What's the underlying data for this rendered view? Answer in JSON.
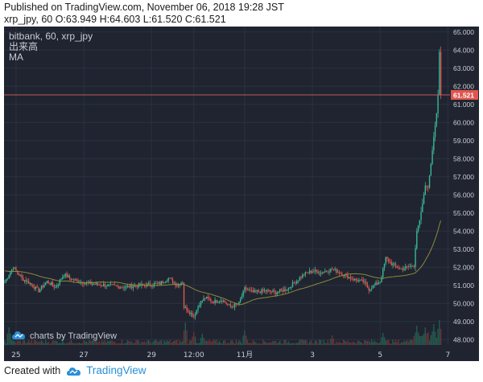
{
  "header": {
    "published_line": "Published on TradingView.com, November 06, 2018 19:28 JST",
    "ohlc_line": "xrp_jpy, 60 O:63.949 H:64.603 L:61.520 C:61.521"
  },
  "footer": {
    "created_with": "Created with",
    "brand": "TradingView"
  },
  "colors": {
    "background": "#1f2430",
    "grid": "#2b3140",
    "up": "#3ab795",
    "down": "#e0564e",
    "ma": "#8c8a3c",
    "price_line": "#c2575a",
    "axis_text": "#c9ccd4"
  },
  "chart_data": {
    "type": "candlestick",
    "legend": {
      "symbol": "bitbank, 60, xrp_jpy",
      "volume_label": "出来高",
      "ma_label": "MA"
    },
    "watermark": "charts by TradingView",
    "last_price_label": "61.521",
    "last_price": 61.521,
    "ylim": [
      47.7,
      65.3
    ],
    "y_ticks": [
      "65.000",
      "64.000",
      "63.000",
      "62.000",
      "61.000",
      "60.000",
      "59.000",
      "58.000",
      "57.000",
      "56.000",
      "55.000",
      "54.000",
      "53.000",
      "52.000",
      "51.000",
      "50.000",
      "49.000",
      "48.000"
    ],
    "x_ticks": [
      {
        "label": "25",
        "bar": 8
      },
      {
        "label": "27",
        "bar": 56
      },
      {
        "label": "29",
        "bar": 104
      },
      {
        "label": "12:00",
        "bar": 134
      },
      {
        "label": "11月",
        "bar": 170
      },
      {
        "label": "3",
        "bar": 218
      },
      {
        "label": "5",
        "bar": 266
      },
      {
        "label": "7",
        "bar": 314
      }
    ],
    "bar_count": 316,
    "price_path": [
      {
        "bar": 0,
        "price": 51.2
      },
      {
        "bar": 6,
        "price": 52.0
      },
      {
        "bar": 12,
        "price": 51.4
      },
      {
        "bar": 18,
        "price": 51.1
      },
      {
        "bar": 24,
        "price": 50.7
      },
      {
        "bar": 30,
        "price": 51.2
      },
      {
        "bar": 36,
        "price": 50.9
      },
      {
        "bar": 42,
        "price": 51.6
      },
      {
        "bar": 48,
        "price": 51.3
      },
      {
        "bar": 60,
        "price": 51.1
      },
      {
        "bar": 72,
        "price": 51.0
      },
      {
        "bar": 84,
        "price": 50.9
      },
      {
        "bar": 96,
        "price": 51.0
      },
      {
        "bar": 110,
        "price": 51.1
      },
      {
        "bar": 116,
        "price": 51.4
      },
      {
        "bar": 122,
        "price": 51.0
      },
      {
        "bar": 126,
        "price": 51.2
      },
      {
        "bar": 127,
        "price": 49.8
      },
      {
        "bar": 130,
        "price": 49.6
      },
      {
        "bar": 134,
        "price": 49.3
      },
      {
        "bar": 138,
        "price": 50.0
      },
      {
        "bar": 142,
        "price": 50.3
      },
      {
        "bar": 148,
        "price": 50.1
      },
      {
        "bar": 154,
        "price": 50.2
      },
      {
        "bar": 160,
        "price": 49.8
      },
      {
        "bar": 166,
        "price": 50.0
      },
      {
        "bar": 170,
        "price": 50.8
      },
      {
        "bar": 176,
        "price": 50.6
      },
      {
        "bar": 184,
        "price": 50.7
      },
      {
        "bar": 192,
        "price": 50.6
      },
      {
        "bar": 200,
        "price": 50.8
      },
      {
        "bar": 206,
        "price": 51.2
      },
      {
        "bar": 212,
        "price": 51.6
      },
      {
        "bar": 218,
        "price": 51.8
      },
      {
        "bar": 224,
        "price": 51.7
      },
      {
        "bar": 232,
        "price": 51.9
      },
      {
        "bar": 240,
        "price": 51.6
      },
      {
        "bar": 248,
        "price": 51.3
      },
      {
        "bar": 254,
        "price": 51.2
      },
      {
        "bar": 258,
        "price": 50.8
      },
      {
        "bar": 262,
        "price": 51.0
      },
      {
        "bar": 266,
        "price": 51.2
      },
      {
        "bar": 270,
        "price": 52.5
      },
      {
        "bar": 274,
        "price": 52.2
      },
      {
        "bar": 280,
        "price": 51.9
      },
      {
        "bar": 286,
        "price": 52.0
      },
      {
        "bar": 290,
        "price": 52.1
      },
      {
        "bar": 292,
        "price": 54.0
      },
      {
        "bar": 294,
        "price": 54.6
      },
      {
        "bar": 296,
        "price": 55.5
      },
      {
        "bar": 298,
        "price": 56.5
      },
      {
        "bar": 300,
        "price": 56.4
      },
      {
        "bar": 302,
        "price": 57.7
      },
      {
        "bar": 304,
        "price": 59.2
      },
      {
        "bar": 306,
        "price": 60.5
      },
      {
        "bar": 307,
        "price": 61.5
      },
      {
        "bar": 308,
        "price": 63.9
      },
      {
        "bar": 309,
        "price": 61.521
      }
    ],
    "volume_spikes": [
      {
        "bar": 3,
        "volume": 4.4
      },
      {
        "bar": 128,
        "volume": 5.6
      },
      {
        "bar": 134,
        "volume": 3.2
      },
      {
        "bar": 140,
        "volume": 2.8
      },
      {
        "bar": 170,
        "volume": 3.6
      },
      {
        "bar": 232,
        "volume": 2.4
      },
      {
        "bar": 268,
        "volume": 3.0
      },
      {
        "bar": 292,
        "volume": 4.8
      },
      {
        "bar": 298,
        "volume": 4.4
      },
      {
        "bar": 304,
        "volume": 5.2
      },
      {
        "bar": 308,
        "volume": 6.2
      }
    ],
    "volume_ylim": [
      0,
      16
    ],
    "ma_start": 51.8,
    "ma_window": 40
  }
}
